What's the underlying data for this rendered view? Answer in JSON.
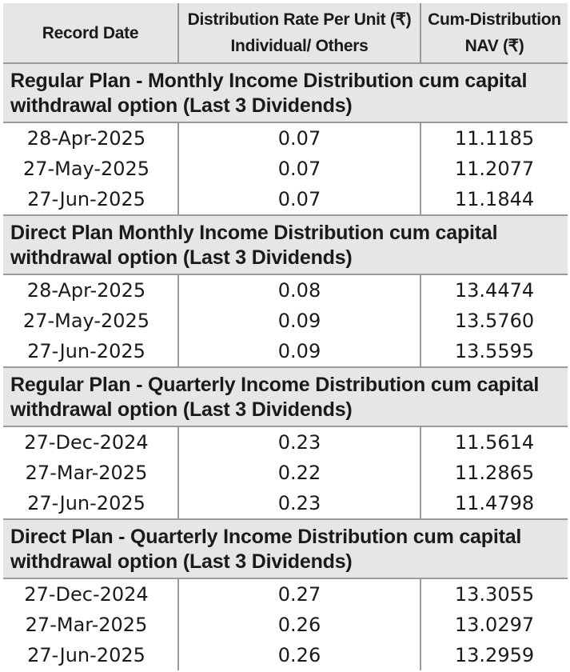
{
  "header": {
    "record_date": "Record Date",
    "rate_line1": "Distribution Rate Per Unit (₹)",
    "rate_line2": "Individual/ Others",
    "nav_line1": "Cum-Distribution",
    "nav_line2": "NAV (₹)"
  },
  "sections": [
    {
      "title": "Regular Plan - Monthly Income Distribution cum capital withdrawal option (Last 3 Dividends)",
      "rows": [
        {
          "date": "28-Apr-2025",
          "rate": "0.07",
          "nav": "11.1185"
        },
        {
          "date": "27-May-2025",
          "rate": "0.07",
          "nav": "11.2077"
        },
        {
          "date": "27-Jun-2025",
          "rate": "0.07",
          "nav": "11.1844"
        }
      ]
    },
    {
      "title": "Direct Plan Monthly Income Distribution cum capital withdrawal option (Last 3 Dividends)",
      "rows": [
        {
          "date": "28-Apr-2025",
          "rate": "0.08",
          "nav": "13.4474"
        },
        {
          "date": "27-May-2025",
          "rate": "0.09",
          "nav": "13.5760"
        },
        {
          "date": "27-Jun-2025",
          "rate": "0.09",
          "nav": "13.5595"
        }
      ]
    },
    {
      "title": "Regular Plan - Quarterly Income Distribution cum capital withdrawal option (Last 3 Dividends)",
      "rows": [
        {
          "date": "27-Dec-2024",
          "rate": "0.23",
          "nav": "11.5614"
        },
        {
          "date": "27-Mar-2025",
          "rate": "0.22",
          "nav": "11.2865"
        },
        {
          "date": "27-Jun-2025",
          "rate": "0.23",
          "nav": "11.4798"
        }
      ]
    },
    {
      "title": "Direct Plan - Quarterly Income Distribution cum capital withdrawal option (Last 3 Dividends)",
      "rows": [
        {
          "date": "27-Dec-2024",
          "rate": "0.27",
          "nav": "13.3055"
        },
        {
          "date": "27-Mar-2025",
          "rate": "0.26",
          "nav": "13.0297"
        },
        {
          "date": "27-Jun-2025",
          "rate": "0.26",
          "nav": "13.2959"
        }
      ]
    }
  ]
}
